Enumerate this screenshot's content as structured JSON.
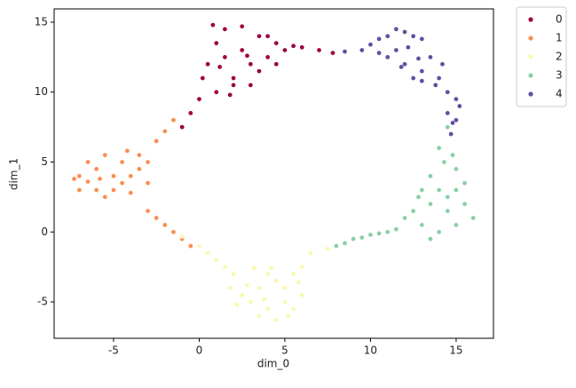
{
  "chart_data": {
    "type": "scatter",
    "x_label": "dim_0",
    "y_label": "dim_1",
    "xlim": [
      -8.47,
      17.18
    ],
    "ylim": [
      -7.6,
      15.95
    ],
    "xticks": [
      -5,
      0,
      5,
      10,
      15
    ],
    "yticks": [
      -5,
      0,
      5,
      10,
      15
    ],
    "grid": false,
    "legend": "outside upper right",
    "series": [
      {
        "name": "0",
        "color": "#9e0142",
        "x": [
          0.5,
          1,
          1.5,
          2,
          2.5,
          3,
          3.5,
          4,
          4.5,
          5,
          5.5,
          6,
          7,
          7.8,
          1,
          2,
          3,
          0.2,
          1.5,
          2.5,
          3.5,
          4.5,
          0,
          -0.5,
          -1,
          1.2,
          2.8,
          4,
          0.8,
          1.8
        ],
        "values": [
          12,
          13.5,
          14.5,
          11,
          13,
          12,
          14,
          12.5,
          13.5,
          13,
          13.3,
          13.2,
          13,
          12.8,
          10,
          10.5,
          10.5,
          11,
          12.5,
          14.7,
          11.5,
          12,
          9.5,
          8.5,
          7.5,
          11.8,
          12.6,
          14,
          14.8,
          9.8
        ]
      },
      {
        "name": "1",
        "color": "#f98e52",
        "x": [
          -7,
          -7,
          -6.5,
          -6,
          -6,
          -5.5,
          -5.5,
          -5,
          -5,
          -4.5,
          -4.5,
          -4,
          -4,
          -3.5,
          -3.5,
          -3,
          -3,
          -6.5,
          -7.3,
          -5.8,
          -4.2,
          -2.5,
          -2,
          -1.5,
          -3,
          -2.5,
          -2,
          -1.5,
          -1,
          -0.5
        ],
        "values": [
          4,
          3,
          5,
          4.5,
          3,
          5.5,
          2.5,
          4,
          3,
          5,
          3.5,
          4,
          2.8,
          5.5,
          4.5,
          5,
          3.5,
          3.6,
          3.8,
          3.8,
          5.8,
          6.5,
          7.2,
          8,
          1.5,
          1,
          0.5,
          0,
          -0.5,
          -1
        ]
      },
      {
        "name": "2",
        "color": "#fbf8b0",
        "x": [
          7.5,
          6.5,
          6,
          5.5,
          5,
          4.5,
          4,
          3.5,
          3,
          2.5,
          2,
          1.5,
          1,
          0.5,
          0,
          -1,
          3.5,
          4,
          5,
          5.5,
          6,
          4.5,
          2.8,
          3.8,
          5.8,
          4.2,
          2.2,
          3.2,
          5.2,
          1.8
        ],
        "values": [
          -1.2,
          -1.5,
          -2.5,
          -3,
          -4,
          -3.5,
          -3,
          -4,
          -5,
          -4.5,
          -3,
          -2.5,
          -2,
          -1.5,
          -1,
          -0.3,
          -6,
          -5.5,
          -5,
          -5.5,
          -4.5,
          -6.3,
          -3.8,
          -4.8,
          -3.6,
          -2.6,
          -5.2,
          -2.6,
          -6,
          -4
        ]
      },
      {
        "name": "3",
        "color": "#89d0a4",
        "x": [
          14.5,
          14,
          14.8,
          14.3,
          13.5,
          15,
          13,
          14,
          15,
          15.5,
          16,
          14.5,
          13.5,
          12.5,
          12,
          13,
          14,
          15,
          13.5,
          11.5,
          11,
          10.5,
          10,
          9.5,
          9,
          8.5,
          8,
          14.5,
          15.5,
          12.8
        ],
        "values": [
          7.5,
          6,
          5.5,
          5,
          4,
          4.5,
          3,
          3,
          3,
          2,
          1,
          1.5,
          2,
          1.5,
          1,
          0.5,
          0,
          0.5,
          -0.5,
          0.2,
          0,
          -0.1,
          -0.2,
          -0.4,
          -0.5,
          -0.8,
          -1,
          2.5,
          3.5,
          2.5
        ]
      },
      {
        "name": "4",
        "color": "#5e4fa2",
        "x": [
          9.5,
          10,
          10.5,
          11,
          11.5,
          12,
          12.5,
          13,
          11,
          12,
          13,
          14,
          14.5,
          15,
          14.5,
          15,
          14.7,
          12.5,
          13.5,
          11.5,
          10.5,
          13.8,
          14.2,
          12.2,
          8.5,
          15.2,
          13,
          11.8,
          14.8,
          12.8
        ],
        "values": [
          13,
          13.4,
          13.8,
          14,
          14.5,
          14.3,
          14,
          13.8,
          12.5,
          12,
          11.5,
          11,
          10,
          9.5,
          8.5,
          8,
          7,
          11,
          12.5,
          13,
          12.8,
          10.5,
          12,
          13.2,
          12.9,
          9,
          10.8,
          11.8,
          7.8,
          12.4
        ]
      }
    ]
  }
}
